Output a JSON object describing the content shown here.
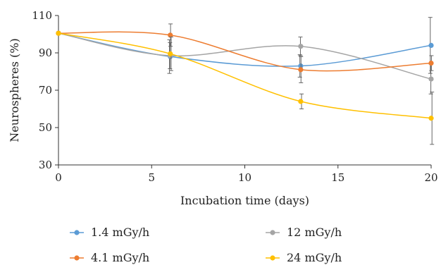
{
  "chart_data": {
    "type": "line",
    "xlabel": "Incubation time (days)",
    "ylabel": "Neurospheres (%)",
    "xlim": [
      0,
      20
    ],
    "ylim": [
      30,
      110
    ],
    "x_ticks": [
      0,
      5,
      10,
      15,
      20
    ],
    "y_ticks": [
      30,
      50,
      70,
      90,
      110
    ],
    "x": [
      0,
      6,
      13,
      20
    ],
    "grid": false,
    "legend": "bottom",
    "series": [
      {
        "name": "1.4 mGy/h",
        "color": "#5b9bd5",
        "values": [
          100.5,
          88,
          83,
          94
        ],
        "errors": [
          0,
          9,
          6,
          15
        ]
      },
      {
        "name": "12 mGy/h",
        "color": "#a5a5a5",
        "values": [
          100.5,
          88.5,
          93.5,
          76
        ],
        "errors": [
          0,
          7,
          5,
          8
        ]
      },
      {
        "name": "4.1 mGy/h",
        "color": "#ed7d31",
        "values": [
          100.5,
          99.5,
          81,
          84.5
        ],
        "errors": [
          0,
          6,
          7,
          4
        ]
      },
      {
        "name": "24 mGy/h",
        "color": "#ffc000",
        "values": [
          100.5,
          89.5,
          64,
          55
        ],
        "errors": [
          0,
          9,
          4,
          14
        ]
      }
    ]
  }
}
